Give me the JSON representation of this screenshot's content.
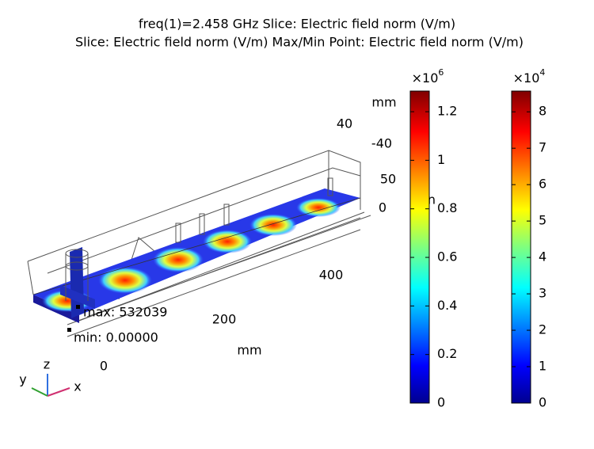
{
  "chart_data": {
    "type": "slice",
    "title": [
      "freq(1)=2.458 GHz   Slice: Electric field norm (V/m)",
      "Slice: Electric field norm (V/m)  Max/Min Point: Electric field norm (V/m)"
    ],
    "axis_labels": [
      {
        "text": "mm"
      },
      {
        "text": "40"
      },
      {
        "text": "-40"
      },
      {
        "text": "50"
      },
      {
        "text": "0"
      },
      {
        "text": "400"
      },
      {
        "text": "200"
      },
      {
        "text": "mm"
      },
      {
        "text": "0"
      },
      {
        "text": "n"
      }
    ],
    "annotations": [
      "max: 532039",
      "min: 0.00000"
    ],
    "triad": [
      "z",
      "y",
      "x"
    ],
    "colorbars": [
      {
        "multiplier": "×10",
        "exponent": "6",
        "ylim": [
          0,
          1.285
        ],
        "yticks": [
          0,
          0.2,
          0.4,
          0.6,
          0.8,
          1,
          1.2
        ],
        "colormap": "jet"
      },
      {
        "multiplier": "×10",
        "exponent": "4",
        "ylim": [
          0,
          8.57
        ],
        "yticks": [
          0,
          1,
          2,
          3,
          4,
          5,
          6,
          7,
          8
        ],
        "colormap": "jet"
      }
    ]
  }
}
